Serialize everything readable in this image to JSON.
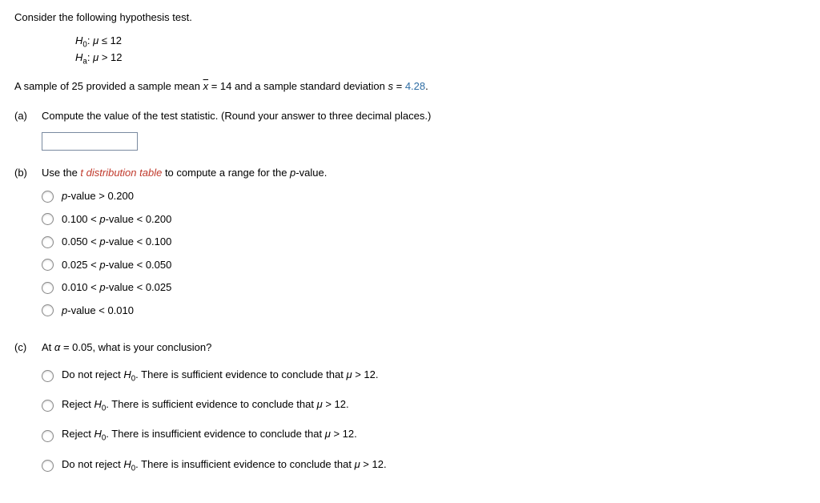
{
  "intro": "Consider the following hypothesis test.",
  "hypotheses": {
    "h0_sub": "0",
    "h0_rel": "≤",
    "h0_val": "12",
    "ha_sub": "a",
    "ha_rel": ">",
    "ha_val": "12"
  },
  "sample": {
    "pre": "A sample of 25 provided a sample mean ",
    "xbar_eq": " = 14 and a sample standard deviation ",
    "s_val": "4.28",
    "period": "."
  },
  "parts": {
    "a": {
      "label": "(a)",
      "prompt": "Compute the value of the test statistic. (Round your answer to three decimal places.)"
    },
    "b": {
      "label": "(b)",
      "prompt_pre": "Use the ",
      "prompt_link": "t distribution table",
      "prompt_post": " to compute a range for the ",
      "prompt_pval": "p",
      "prompt_tail": "-value.",
      "options": [
        {
          "pre": "p",
          "post": "-value > 0.200"
        },
        {
          "pre": "0.100 < ",
          "mid": "p",
          "post": "-value < 0.200"
        },
        {
          "pre": "0.050 < ",
          "mid": "p",
          "post": "-value < 0.100"
        },
        {
          "pre": "0.025 < ",
          "mid": "p",
          "post": "-value < 0.050"
        },
        {
          "pre": "0.010 < ",
          "mid": "p",
          "post": "-value < 0.025"
        },
        {
          "pre": "p",
          "post": "-value < 0.010"
        }
      ]
    },
    "c": {
      "label": "(c)",
      "prompt_pre": "At ",
      "alpha": "α",
      "prompt_eq": " = 0.05, what is your conclusion?",
      "options": [
        {
          "lead": "Do not reject ",
          "h": "H",
          "sub": "0",
          "tail1": ". There is sufficient evidence to conclude that ",
          "mu": "μ",
          "tail2": " > 12."
        },
        {
          "lead": "Reject ",
          "h": "H",
          "sub": "0",
          "tail1": ". There is sufficient evidence to conclude that ",
          "mu": "μ",
          "tail2": " > 12."
        },
        {
          "lead": "Reject ",
          "h": "H",
          "sub": "0",
          "tail1": ". There is insufficient evidence to conclude that ",
          "mu": "μ",
          "tail2": " > 12."
        },
        {
          "lead": "Do not reject ",
          "h": "H",
          "sub": "0",
          "tail1": ". There is insufficient evidence to conclude that ",
          "mu": "μ",
          "tail2": " > 12."
        }
      ]
    }
  }
}
